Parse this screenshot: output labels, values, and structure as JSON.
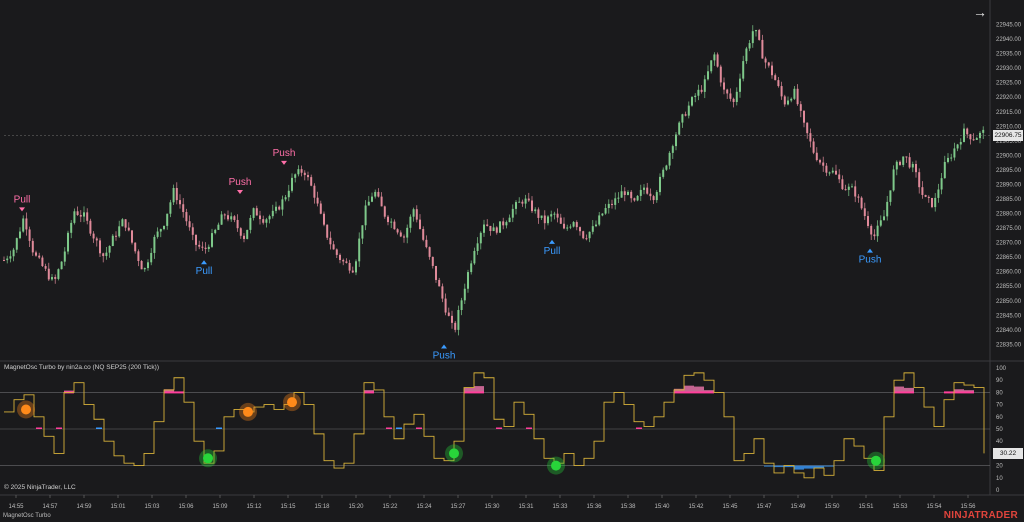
{
  "indicator_label": "MagnetOsc Turbo by nin2a.co (NQ SEP25 (200 Tick))",
  "copyright": "© 2025 NinjaTrader, LLC",
  "tab_label": "MagnetOsc Turbo",
  "brand": "NINJATRADER",
  "nav_icon": "right-arrow-icon",
  "colors": {
    "background": "#1a1a1c",
    "up_candle": "#7ec98a",
    "down_candle": "#e08a9a",
    "pull_label": "#ff6fa8",
    "push_label": "#3a9bff",
    "osc_line": "#d8b23a",
    "pink_zone": "#ff7fb8",
    "blue_zone": "#3a9bff",
    "green_dot": "#28d53a",
    "orange_dot": "#ff8a1a"
  },
  "chart_data": [
    {
      "type": "candlestick",
      "symbol": "NQ SEP25 (200 Tick)",
      "ylim": [
        22831,
        22950
      ],
      "y_ticks": [
        "22945.00",
        "22940.00",
        "22935.00",
        "22930.00",
        "22925.00",
        "22920.00",
        "22915.00",
        "22910.00",
        "22905.00",
        "22900.00",
        "22895.00",
        "22890.00",
        "22885.00",
        "22880.00",
        "22875.00",
        "22870.00",
        "22865.00",
        "22860.00",
        "22855.00",
        "22850.00",
        "22845.00",
        "22840.00",
        "22835.00"
      ],
      "current_price": "22906.75",
      "x_ticks": [
        "14:55",
        "14:57",
        "14:59",
        "15:01",
        "15:03",
        "15:06",
        "15:09",
        "15:12",
        "15:15",
        "15:18",
        "15:20",
        "15:22",
        "15:24",
        "15:27",
        "15:30",
        "15:31",
        "15:33",
        "15:36",
        "15:38",
        "15:40",
        "15:42",
        "15:45",
        "15:47",
        "15:49",
        "15:50",
        "15:51",
        "15:53",
        "15:54",
        "15:56"
      ],
      "close_path": [
        [
          0,
          22864
        ],
        [
          10,
          22868
        ],
        [
          20,
          22879
        ],
        [
          30,
          22866
        ],
        [
          40,
          22861
        ],
        [
          50,
          22856
        ],
        [
          60,
          22866
        ],
        [
          70,
          22881
        ],
        [
          80,
          22879
        ],
        [
          90,
          22872
        ],
        [
          100,
          22865
        ],
        [
          110,
          22872
        ],
        [
          120,
          22878
        ],
        [
          130,
          22868
        ],
        [
          140,
          22860
        ],
        [
          150,
          22871
        ],
        [
          160,
          22877
        ],
        [
          170,
          22888
        ],
        [
          180,
          22880
        ],
        [
          190,
          22870
        ],
        [
          200,
          22867
        ],
        [
          210,
          22873
        ],
        [
          220,
          22880
        ],
        [
          230,
          22877
        ],
        [
          240,
          22872
        ],
        [
          250,
          22881
        ],
        [
          260,
          22878
        ],
        [
          270,
          22880
        ],
        [
          280,
          22885
        ],
        [
          290,
          22893
        ],
        [
          300,
          22895
        ],
        [
          310,
          22887
        ],
        [
          320,
          22875
        ],
        [
          330,
          22867
        ],
        [
          340,
          22863
        ],
        [
          350,
          22861
        ],
        [
          360,
          22880
        ],
        [
          370,
          22888
        ],
        [
          380,
          22880
        ],
        [
          390,
          22876
        ],
        [
          400,
          22872
        ],
        [
          410,
          22882
        ],
        [
          420,
          22870
        ],
        [
          430,
          22860
        ],
        [
          440,
          22849
        ],
        [
          450,
          22839
        ],
        [
          460,
          22854
        ],
        [
          470,
          22868
        ],
        [
          480,
          22877
        ],
        [
          490,
          22874
        ],
        [
          500,
          22877
        ],
        [
          510,
          22882
        ],
        [
          520,
          22885
        ],
        [
          530,
          22881
        ],
        [
          540,
          22877
        ],
        [
          550,
          22880
        ],
        [
          560,
          22874
        ],
        [
          570,
          22878
        ],
        [
          580,
          22872
        ],
        [
          590,
          22875
        ],
        [
          600,
          22881
        ],
        [
          610,
          22884
        ],
        [
          620,
          22888
        ],
        [
          630,
          22883
        ],
        [
          640,
          22889
        ],
        [
          650,
          22886
        ],
        [
          660,
          22895
        ],
        [
          670,
          22906
        ],
        [
          680,
          22914
        ],
        [
          690,
          22920
        ],
        [
          700,
          22924
        ],
        [
          710,
          22935
        ],
        [
          720,
          22922
        ],
        [
          730,
          22918
        ],
        [
          740,
          22934
        ],
        [
          750,
          22944
        ],
        [
          760,
          22933
        ],
        [
          770,
          22927
        ],
        [
          780,
          22918
        ],
        [
          790,
          22922
        ],
        [
          800,
          22910
        ],
        [
          810,
          22901
        ],
        [
          820,
          22896
        ],
        [
          830,
          22894
        ],
        [
          840,
          22889
        ],
        [
          850,
          22888
        ],
        [
          860,
          22880
        ],
        [
          870,
          22872
        ],
        [
          880,
          22879
        ],
        [
          890,
          22895
        ],
        [
          900,
          22900
        ],
        [
          910,
          22895
        ],
        [
          920,
          22885
        ],
        [
          930,
          22883
        ],
        [
          940,
          22896
        ],
        [
          950,
          22902
        ],
        [
          960,
          22908
        ],
        [
          970,
          22906
        ],
        [
          980,
          22908
        ]
      ],
      "annotations": [
        {
          "text": "Pull",
          "type": "pull",
          "x": 18,
          "price": 22879
        },
        {
          "text": "Push",
          "type": "pull",
          "x": 236,
          "price": 22885
        },
        {
          "text": "Push",
          "type": "pull",
          "x": 280,
          "price": 22895
        },
        {
          "text": "Pull",
          "type": "push",
          "x": 200,
          "price": 22866
        },
        {
          "text": "Pull",
          "type": "push",
          "x": 548,
          "price": 22873
        },
        {
          "text": "Push",
          "type": "push",
          "x": 440,
          "price": 22837
        },
        {
          "text": "Push",
          "type": "push",
          "x": 866,
          "price": 22870
        }
      ]
    },
    {
      "type": "line",
      "name": "MagnetOsc Turbo",
      "ylim": [
        0,
        100
      ],
      "y_ticks": [
        "100",
        "90",
        "80",
        "70",
        "60",
        "50",
        "40",
        "30",
        "20",
        "10",
        "0"
      ],
      "current_value": "30.22",
      "levels": [
        80,
        50,
        20
      ],
      "path": [
        [
          0,
          64
        ],
        [
          10,
          74
        ],
        [
          20,
          78
        ],
        [
          30,
          60
        ],
        [
          40,
          44
        ],
        [
          50,
          30
        ],
        [
          60,
          80
        ],
        [
          70,
          88
        ],
        [
          80,
          70
        ],
        [
          90,
          58
        ],
        [
          100,
          40
        ],
        [
          110,
          28
        ],
        [
          120,
          22
        ],
        [
          130,
          20
        ],
        [
          140,
          30
        ],
        [
          150,
          56
        ],
        [
          160,
          82
        ],
        [
          170,
          92
        ],
        [
          180,
          72
        ],
        [
          190,
          40
        ],
        [
          200,
          22
        ],
        [
          210,
          32
        ],
        [
          220,
          60
        ],
        [
          230,
          66
        ],
        [
          240,
          64
        ],
        [
          250,
          68
        ],
        [
          260,
          70
        ],
        [
          270,
          66
        ],
        [
          280,
          70
        ],
        [
          290,
          80
        ],
        [
          300,
          70
        ],
        [
          310,
          46
        ],
        [
          320,
          24
        ],
        [
          330,
          18
        ],
        [
          340,
          22
        ],
        [
          350,
          46
        ],
        [
          360,
          88
        ],
        [
          370,
          82
        ],
        [
          380,
          60
        ],
        [
          390,
          42
        ],
        [
          400,
          54
        ],
        [
          410,
          62
        ],
        [
          420,
          44
        ],
        [
          430,
          26
        ],
        [
          440,
          24
        ],
        [
          450,
          40
        ],
        [
          460,
          84
        ],
        [
          470,
          96
        ],
        [
          480,
          92
        ],
        [
          490,
          58
        ],
        [
          500,
          52
        ],
        [
          510,
          72
        ],
        [
          520,
          62
        ],
        [
          530,
          42
        ],
        [
          540,
          26
        ],
        [
          550,
          22
        ],
        [
          560,
          30
        ],
        [
          570,
          20
        ],
        [
          580,
          26
        ],
        [
          590,
          40
        ],
        [
          600,
          72
        ],
        [
          610,
          80
        ],
        [
          620,
          70
        ],
        [
          630,
          56
        ],
        [
          640,
          52
        ],
        [
          650,
          60
        ],
        [
          660,
          72
        ],
        [
          670,
          82
        ],
        [
          680,
          94
        ],
        [
          690,
          96
        ],
        [
          700,
          90
        ],
        [
          710,
          80
        ],
        [
          720,
          60
        ],
        [
          730,
          24
        ],
        [
          740,
          30
        ],
        [
          750,
          42
        ],
        [
          760,
          22
        ],
        [
          770,
          14
        ],
        [
          780,
          20
        ],
        [
          790,
          14
        ],
        [
          800,
          10
        ],
        [
          810,
          18
        ],
        [
          820,
          12
        ],
        [
          830,
          24
        ],
        [
          840,
          42
        ],
        [
          850,
          36
        ],
        [
          860,
          26
        ],
        [
          870,
          16
        ],
        [
          880,
          60
        ],
        [
          890,
          90
        ],
        [
          900,
          96
        ],
        [
          910,
          84
        ],
        [
          920,
          68
        ],
        [
          930,
          52
        ],
        [
          940,
          74
        ],
        [
          950,
          88
        ],
        [
          960,
          86
        ],
        [
          970,
          84
        ],
        [
          980,
          30
        ]
      ]
    }
  ]
}
